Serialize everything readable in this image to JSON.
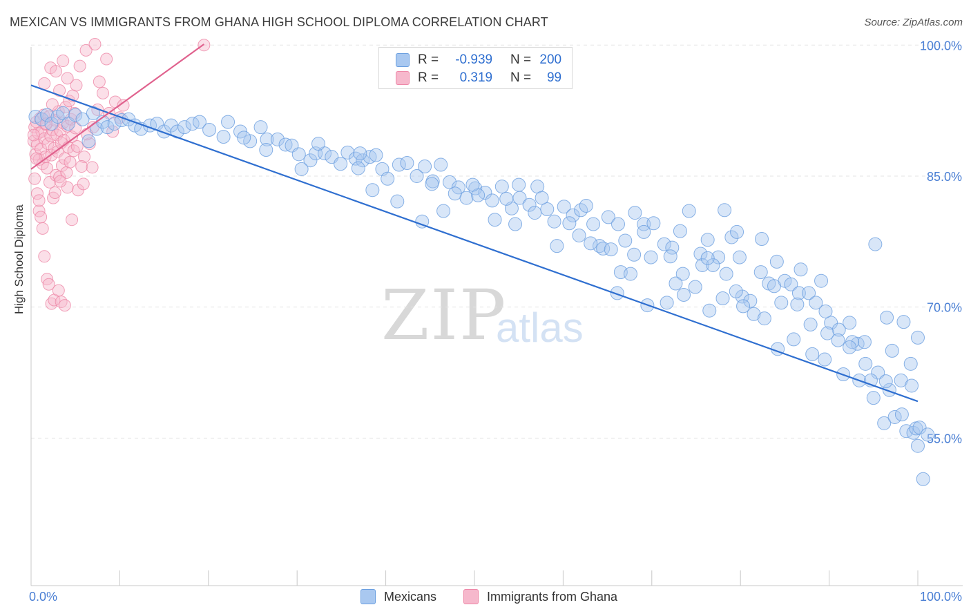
{
  "title": "MEXICAN VS IMMIGRANTS FROM GHANA HIGH SCHOOL DIPLOMA CORRELATION CHART",
  "source": "Source: ZipAtlas.com",
  "watermark": {
    "zip": "ZIP",
    "atlas": "atlas"
  },
  "legend_top": {
    "rows": [
      {
        "r_label": "R =",
        "r_value": "-0.939",
        "n_label": "N =",
        "n_value": "200"
      },
      {
        "r_label": "R =",
        "r_value": "0.319",
        "n_label": "N =",
        "n_value": "99"
      }
    ]
  },
  "colors": {
    "blue_fill": "#a9c8f0",
    "blue_stroke": "#6b9fe0",
    "blue_line": "#2f6fd0",
    "pink_fill": "#f6b8cc",
    "pink_stroke": "#ee88a8",
    "pink_line": "#e0628e",
    "tick_label": "#4a7fd4",
    "grid": "#e3e3e3"
  },
  "chart_data": {
    "type": "scatter",
    "title": "MEXICAN VS IMMIGRANTS FROM GHANA HIGH SCHOOL DIPLOMA CORRELATION CHART",
    "xlabel": "",
    "ylabel": "High School Diploma",
    "xlim": [
      0,
      100
    ],
    "ylim": [
      40,
      102
    ],
    "x_tick_labels": [
      "0.0%",
      "100.0%"
    ],
    "y_ticks": [
      55,
      70,
      85,
      100
    ],
    "y_tick_labels": [
      "55.0%",
      "70.0%",
      "85.0%",
      "100.0%"
    ],
    "series": [
      {
        "name": "Mexicans",
        "n": 200,
        "r": -0.939,
        "trend": {
          "x": [
            0,
            100
          ],
          "y": [
            95.4,
            59.2
          ]
        },
        "points": [
          [
            0.5,
            91.8
          ],
          [
            1.2,
            91.5
          ],
          [
            1.8,
            92
          ],
          [
            2.3,
            91
          ],
          [
            3,
            91.8
          ],
          [
            3.6,
            92.2
          ],
          [
            4.2,
            91
          ],
          [
            5,
            92
          ],
          [
            5.8,
            91.5
          ],
          [
            6.5,
            89
          ],
          [
            7,
            92.2
          ],
          [
            7.4,
            90.4
          ],
          [
            8.1,
            91.2
          ],
          [
            8.6,
            90.6
          ],
          [
            9.4,
            91
          ],
          [
            10.2,
            91.4
          ],
          [
            11,
            91.5
          ],
          [
            11.7,
            90.8
          ],
          [
            12.4,
            90.4
          ],
          [
            13.4,
            90.8
          ],
          [
            14.2,
            91
          ],
          [
            15,
            90.1
          ],
          [
            15.8,
            90.8
          ],
          [
            16.5,
            90.1
          ],
          [
            17.3,
            90.6
          ],
          [
            18.2,
            91
          ],
          [
            19,
            91.2
          ],
          [
            20.1,
            90.3
          ],
          [
            21.7,
            89.5
          ],
          [
            22.2,
            91.2
          ],
          [
            23.6,
            90.1
          ],
          [
            24.7,
            89
          ],
          [
            25.9,
            90.6
          ],
          [
            26.6,
            89.2
          ],
          [
            27.8,
            89.2
          ],
          [
            28.7,
            88.6
          ],
          [
            29.4,
            88.5
          ],
          [
            30.2,
            87.5
          ],
          [
            31.5,
            86.8
          ],
          [
            32.1,
            87.6
          ],
          [
            33.1,
            87.6
          ],
          [
            33.9,
            87.2
          ],
          [
            34.9,
            86.4
          ],
          [
            35.7,
            87.7
          ],
          [
            36.6,
            87
          ],
          [
            37.4,
            86.8
          ],
          [
            38.2,
            87.2
          ],
          [
            38.9,
            87.4
          ],
          [
            39.6,
            85.8
          ],
          [
            40.2,
            84.7
          ],
          [
            41.5,
            86.3
          ],
          [
            42.4,
            86.5
          ],
          [
            43.5,
            85
          ],
          [
            44.4,
            86.1
          ],
          [
            45.3,
            84.4
          ],
          [
            46.2,
            86.3
          ],
          [
            47.2,
            84.3
          ],
          [
            48.2,
            83.7
          ],
          [
            49.1,
            82.5
          ],
          [
            50.1,
            83.6
          ],
          [
            51.2,
            83.1
          ],
          [
            52,
            82.2
          ],
          [
            53.1,
            83.8
          ],
          [
            54.2,
            81.3
          ],
          [
            55.1,
            82.5
          ],
          [
            56.2,
            81.7
          ],
          [
            57.1,
            83.8
          ],
          [
            58.2,
            81.2
          ],
          [
            59,
            79.8
          ],
          [
            60.1,
            81.5
          ],
          [
            61.1,
            80.5
          ],
          [
            62,
            81.1
          ],
          [
            62.6,
            81.6
          ],
          [
            63.4,
            79.5
          ],
          [
            64.1,
            77
          ],
          [
            65.1,
            80.3
          ],
          [
            66.2,
            79.5
          ],
          [
            67,
            77.6
          ],
          [
            68.1,
            80.8
          ],
          [
            69.1,
            79.5
          ],
          [
            70.2,
            79.6
          ],
          [
            71.4,
            77.2
          ],
          [
            72.3,
            76.8
          ],
          [
            73.5,
            73.8
          ],
          [
            74.2,
            81
          ],
          [
            75.5,
            76.1
          ],
          [
            76.3,
            77.7
          ],
          [
            77.5,
            75.7
          ],
          [
            78.2,
            81.1
          ],
          [
            79,
            78
          ],
          [
            79.6,
            78.6
          ],
          [
            80.2,
            71.2
          ],
          [
            81.1,
            70.7
          ],
          [
            82.4,
            77.8
          ],
          [
            83.2,
            72.7
          ],
          [
            84.1,
            75.2
          ],
          [
            85,
            73
          ],
          [
            85.7,
            72.6
          ],
          [
            86.6,
            71.6
          ],
          [
            87.7,
            71.6
          ],
          [
            88.5,
            70.5
          ],
          [
            89.1,
            73
          ],
          [
            90.2,
            68.2
          ],
          [
            91.1,
            67.4
          ],
          [
            92.3,
            68.2
          ],
          [
            93.2,
            65.8
          ],
          [
            94,
            66
          ],
          [
            95.2,
            77.2
          ],
          [
            96.5,
            68.8
          ],
          [
            97.1,
            65
          ],
          [
            98.4,
            68.3
          ],
          [
            99.2,
            63.5
          ],
          [
            100,
            66.5
          ],
          [
            55,
            84
          ],
          [
            24,
            89.4
          ],
          [
            26.5,
            88
          ],
          [
            30.5,
            85.8
          ],
          [
            32.4,
            88.7
          ],
          [
            36.9,
            85.9
          ],
          [
            38.5,
            83.4
          ],
          [
            41.3,
            82.1
          ],
          [
            44.1,
            79.8
          ],
          [
            46.5,
            81
          ],
          [
            47.8,
            83
          ],
          [
            50.4,
            82.8
          ],
          [
            52.3,
            80
          ],
          [
            54.6,
            79.5
          ],
          [
            56.8,
            80.8
          ],
          [
            59.3,
            77
          ],
          [
            60.7,
            79.6
          ],
          [
            63.1,
            77.3
          ],
          [
            64.5,
            76.7
          ],
          [
            66.5,
            74
          ],
          [
            68,
            76
          ],
          [
            69.9,
            75.7
          ],
          [
            72.1,
            75.8
          ],
          [
            73.2,
            78.7
          ],
          [
            75.7,
            74.8
          ],
          [
            76.9,
            74.8
          ],
          [
            78.4,
            73.8
          ],
          [
            79.5,
            71.8
          ],
          [
            81.5,
            69.2
          ],
          [
            82.3,
            74
          ],
          [
            84.6,
            70.5
          ],
          [
            86.4,
            70.3
          ],
          [
            87.9,
            68
          ],
          [
            89.8,
            67
          ],
          [
            91,
            66.2
          ],
          [
            92.6,
            66
          ],
          [
            94.1,
            63.5
          ],
          [
            95.5,
            62.5
          ],
          [
            96.8,
            60.5
          ],
          [
            98.1,
            61.6
          ],
          [
            99.3,
            61
          ],
          [
            66.1,
            71.6
          ],
          [
            67.6,
            73.8
          ],
          [
            69.5,
            70.2
          ],
          [
            71.7,
            70.5
          ],
          [
            73.6,
            71.4
          ],
          [
            74.9,
            72.3
          ],
          [
            76.5,
            69.6
          ],
          [
            78,
            71
          ],
          [
            80.3,
            70.1
          ],
          [
            82.7,
            68.7
          ],
          [
            84.2,
            65.2
          ],
          [
            86,
            66.3
          ],
          [
            88.1,
            64.6
          ],
          [
            89.5,
            64
          ],
          [
            91.6,
            62.3
          ],
          [
            93.4,
            61.6
          ],
          [
            95,
            59.6
          ],
          [
            96.2,
            56.7
          ],
          [
            97.4,
            57.4
          ],
          [
            98.7,
            55.8
          ],
          [
            99.5,
            55.6
          ],
          [
            100,
            54.1
          ],
          [
            37.1,
            87.6
          ],
          [
            45.2,
            84.1
          ],
          [
            49.8,
            84
          ],
          [
            53.6,
            82.4
          ],
          [
            57.6,
            82.5
          ],
          [
            61.8,
            78.2
          ],
          [
            65.4,
            76.6
          ],
          [
            69.1,
            78.6
          ],
          [
            72.7,
            72.7
          ],
          [
            76.3,
            75.6
          ],
          [
            79.9,
            75.7
          ],
          [
            83.8,
            72.4
          ],
          [
            86.8,
            74.3
          ],
          [
            89.6,
            69.5
          ],
          [
            92.3,
            65.4
          ],
          [
            94.7,
            61.6
          ],
          [
            96.4,
            61.5
          ],
          [
            98.2,
            57.7
          ],
          [
            99.8,
            56.1
          ],
          [
            100.2,
            56.2
          ],
          [
            100.6,
            50.3
          ],
          [
            101.1,
            55.4
          ]
        ]
      },
      {
        "name": "Immigrants from Ghana",
        "n": 99,
        "r": 0.319,
        "trend": {
          "x": [
            0,
            19.5
          ],
          "y": [
            85.8,
            100.1
          ]
        },
        "points": [
          [
            0.3,
            89
          ],
          [
            0.4,
            90.6
          ],
          [
            0.5,
            87.5
          ],
          [
            0.6,
            91.2
          ],
          [
            0.7,
            88.6
          ],
          [
            0.8,
            89.9
          ],
          [
            0.9,
            86.9
          ],
          [
            1,
            91.6
          ],
          [
            1.1,
            88.1
          ],
          [
            1.2,
            90.1
          ],
          [
            1.3,
            86.4
          ],
          [
            1.4,
            92
          ],
          [
            1.5,
            89.3
          ],
          [
            1.6,
            87.2
          ],
          [
            1.7,
            90.9
          ],
          [
            1.8,
            85.9
          ],
          [
            1.9,
            88.7
          ],
          [
            2,
            91.8
          ],
          [
            2.1,
            84.3
          ],
          [
            2.2,
            89.6
          ],
          [
            2.3,
            87.4
          ],
          [
            2.4,
            90.3
          ],
          [
            2.5,
            82.5
          ],
          [
            2.6,
            88.2
          ],
          [
            2.7,
            91.4
          ],
          [
            2.8,
            85.1
          ],
          [
            2.9,
            89.7
          ],
          [
            3,
            87.8
          ],
          [
            3.1,
            92.4
          ],
          [
            3.2,
            84.9
          ],
          [
            3.3,
            90.2
          ],
          [
            3.4,
            88.8
          ],
          [
            3.5,
            86.2
          ],
          [
            3.6,
            91.1
          ],
          [
            3.7,
            89.1
          ],
          [
            3.8,
            87
          ],
          [
            3.9,
            92.9
          ],
          [
            4,
            85.4
          ],
          [
            4.1,
            90.7
          ],
          [
            4.2,
            88.3
          ],
          [
            4.3,
            93.6
          ],
          [
            4.4,
            86.6
          ],
          [
            4.5,
            91.5
          ],
          [
            4.6,
            89.5
          ],
          [
            4.7,
            94.2
          ],
          [
            4.8,
            87.9
          ],
          [
            4.9,
            92.2
          ],
          [
            5,
            90.5
          ],
          [
            5.1,
            95.4
          ],
          [
            5.2,
            88.4
          ],
          [
            0.4,
            84.7
          ],
          [
            0.7,
            83
          ],
          [
            0.9,
            81
          ],
          [
            1.1,
            80.3
          ],
          [
            1.3,
            79
          ],
          [
            1.5,
            75.8
          ],
          [
            1.8,
            73.2
          ],
          [
            2,
            72.6
          ],
          [
            2.3,
            70.4
          ],
          [
            2.6,
            70.8
          ],
          [
            3.1,
            71.9
          ],
          [
            3.4,
            70.6
          ],
          [
            3.8,
            70.2
          ],
          [
            4.6,
            80
          ],
          [
            5.3,
            83.4
          ],
          [
            1.5,
            95.6
          ],
          [
            2.2,
            97.4
          ],
          [
            2.8,
            97
          ],
          [
            3.6,
            98.2
          ],
          [
            4.1,
            96.2
          ],
          [
            5.5,
            97.6
          ],
          [
            6.2,
            99.4
          ],
          [
            7.2,
            100.1
          ],
          [
            8.5,
            98.4
          ],
          [
            9.5,
            93.5
          ],
          [
            10.4,
            93.1
          ],
          [
            7.7,
            95.8
          ],
          [
            7,
            90.6
          ],
          [
            6.6,
            88.7
          ],
          [
            6,
            87.2
          ],
          [
            5.7,
            86.1
          ],
          [
            5.9,
            84.1
          ],
          [
            6.3,
            89.8
          ],
          [
            6.9,
            86
          ],
          [
            7.5,
            92.6
          ],
          [
            8.1,
            94.5
          ],
          [
            8.8,
            92.2
          ],
          [
            9.2,
            90.1
          ],
          [
            10,
            91.7
          ],
          [
            19.5,
            100
          ],
          [
            4.1,
            83.7
          ],
          [
            3.3,
            84.4
          ],
          [
            2.7,
            83.1
          ],
          [
            0.9,
            82.2
          ],
          [
            0.3,
            89.7
          ],
          [
            0.6,
            87
          ],
          [
            1.7,
            91
          ],
          [
            2.4,
            93.2
          ],
          [
            3.2,
            94.8
          ]
        ]
      }
    ]
  },
  "bottom_legend": {
    "items": [
      {
        "label": "Mexicans"
      },
      {
        "label": "Immigrants from Ghana"
      }
    ]
  }
}
